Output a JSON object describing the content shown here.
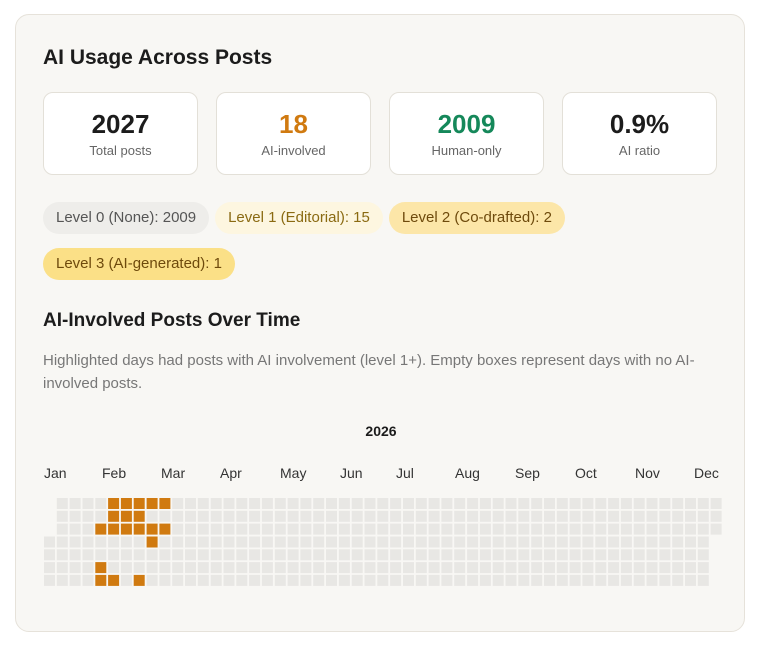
{
  "title": "AI Usage Across Posts",
  "stats": [
    {
      "value": "2027",
      "label": "Total posts",
      "color": "#1c1c1c"
    },
    {
      "value": "18",
      "label": "AI-involved",
      "color": "#d07a10"
    },
    {
      "value": "2009",
      "label": "Human-only",
      "color": "#15885a"
    },
    {
      "value": "0.9%",
      "label": "AI ratio",
      "color": "#1c1c1c"
    }
  ],
  "levels": [
    "Level 0 (None): 2009",
    "Level 1 (Editorial): 15",
    "Level 2 (Co-drafted): 2",
    "Level 3 (AI-generated): 1"
  ],
  "timeline": {
    "title": "AI-Involved Posts Over Time",
    "description": "Highlighted days had posts with AI involvement (level 1+). Empty boxes represent days with no AI-involved posts.",
    "year": "2026",
    "months": [
      "Jan",
      "Feb",
      "Mar",
      "Apr",
      "May",
      "Jun",
      "Jul",
      "Aug",
      "Sep",
      "Oct",
      "Nov",
      "Dec"
    ],
    "active_color": "#d07a10",
    "empty_color": "#e8e7e4",
    "active_days": [
      [
        4,
        5
      ],
      [
        4,
        6
      ],
      [
        4,
        2
      ],
      [
        5,
        0
      ],
      [
        5,
        1
      ],
      [
        5,
        2
      ],
      [
        5,
        6
      ],
      [
        6,
        0
      ],
      [
        6,
        1
      ],
      [
        6,
        2
      ],
      [
        7,
        0
      ],
      [
        7,
        1
      ],
      [
        7,
        2
      ],
      [
        7,
        6
      ],
      [
        8,
        0
      ],
      [
        8,
        2
      ],
      [
        8,
        3
      ],
      [
        9,
        0
      ],
      [
        9,
        2
      ]
    ]
  }
}
